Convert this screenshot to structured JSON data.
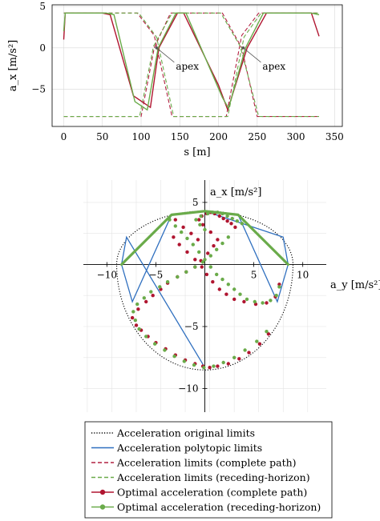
{
  "chart_data": [
    {
      "type": "line",
      "xlabel": "s [m]",
      "ylabel": "a_x [m/s²]",
      "xlim": [
        -15,
        360
      ],
      "ylim": [
        -9.5,
        5.2
      ],
      "xticks": [
        0,
        50,
        100,
        150,
        200,
        250,
        300,
        350
      ],
      "yticks": [
        5,
        0,
        -5
      ],
      "grid": true,
      "annotations": [
        {
          "text": "apex",
          "x": 120,
          "y": 0
        },
        {
          "text": "apex",
          "x": 232,
          "y": 0
        }
      ],
      "series": [
        {
          "name": "Acceleration limits (complete path)",
          "style": "dashed",
          "color": "#b22040",
          "x": [
            0,
            95,
            117,
            140,
            190,
            210,
            230,
            252,
            330
          ],
          "y": [
            4.2,
            4.2,
            1.5,
            -8.3,
            -8.3,
            -8.3,
            1.5,
            4.2,
            4.2
          ]
        },
        {
          "name": "Acceleration limits (complete path)",
          "style": "dashed",
          "color": "#b22040",
          "x": [
            0,
            80,
            100,
            117,
            138,
            190,
            205,
            230,
            250,
            330
          ],
          "y": [
            -8.3,
            -8.3,
            -8.3,
            0,
            4.2,
            4.2,
            4.2,
            0,
            -8.3,
            -8.3
          ]
        },
        {
          "name": "Acceleration limits (receding-horizon)",
          "style": "dashed",
          "color": "#6aab4a",
          "x": [
            0,
            97,
            120,
            142,
            192,
            212,
            233,
            255,
            330
          ],
          "y": [
            4.2,
            4.2,
            1.3,
            -8.3,
            -8.3,
            -8.3,
            1.3,
            4.2,
            4.2
          ]
        },
        {
          "name": "Acceleration limits (receding-horizon)",
          "style": "dashed",
          "color": "#6aab4a",
          "x": [
            0,
            78,
            98,
            116,
            140,
            188,
            203,
            228,
            252,
            330
          ],
          "y": [
            -8.3,
            -8.3,
            -8.3,
            0.2,
            4.2,
            4.2,
            4.2,
            0.2,
            -8.3,
            -8.3
          ]
        },
        {
          "name": "Optimal acceleration (complete path)",
          "style": "solid",
          "color": "#b01530",
          "x": [
            0,
            2,
            40,
            50,
            60,
            90,
            112,
            123,
            147,
            155,
            200,
            212,
            237,
            262,
            270,
            320,
            330
          ],
          "y": [
            1.0,
            4.2,
            4.2,
            4.2,
            4.0,
            -5.8,
            -7.2,
            0,
            4.2,
            4.2,
            -4.5,
            -7.5,
            0,
            4.2,
            4.2,
            4.2,
            1.4
          ]
        },
        {
          "name": "Optimal acceleration (receding-horizon)",
          "style": "solid",
          "color": "#6aab4a",
          "x": [
            0,
            2,
            40,
            55,
            65,
            92,
            108,
            122,
            145,
            158,
            205,
            213,
            235,
            258,
            268,
            320,
            330
          ],
          "y": [
            2.0,
            4.2,
            4.2,
            4.2,
            4.0,
            -6.5,
            -7.5,
            0,
            4.2,
            4.2,
            -6.0,
            -7.3,
            0,
            4.2,
            4.2,
            4.2,
            4.0
          ]
        }
      ]
    },
    {
      "type": "scatter",
      "xlabel": "a_y [m/s²]",
      "ylabel": "a_x [m/s²]",
      "xlim": [
        -12.4,
        12.4
      ],
      "ylim": [
        -11.9,
        6.8
      ],
      "xticks": [
        -10,
        -5,
        5,
        10
      ],
      "yticks": [
        5,
        -5,
        -10
      ],
      "grid": true,
      "series": [
        {
          "name": "Acceleration original limits",
          "style": "dotted",
          "color": "#000000",
          "ellipse": {
            "ax": 9,
            "ay_pos": 4.3,
            "ay_neg": -8.5
          }
        },
        {
          "name": "Acceleration polytopic limits",
          "style": "solid",
          "color": "#2f6fbf",
          "x": [
            0,
            8.0,
            8.5,
            7.4,
            3.4,
            0,
            -3.4,
            -7.4,
            -8.5,
            -8.0,
            0
          ],
          "y": [
            4.3,
            2.2,
            0,
            -3.0,
            4.0,
            4.3,
            4.0,
            -3.0,
            0,
            2.2,
            -8.3
          ]
        },
        {
          "name": "Acceleration limits (complete path)",
          "style": "dashed",
          "color": "#b22040",
          "x": [
            0,
            3.4,
            8.5,
            8.5,
            3.4,
            0,
            -3.4,
            -8.5,
            -8.5,
            -3.4,
            0
          ],
          "y": [
            4.3,
            4.0,
            0,
            0,
            4.0,
            4.3,
            4.0,
            0,
            0,
            4.0,
            4.3
          ]
        },
        {
          "name": "Acceleration limits (receding-horizon)",
          "style": "dashed",
          "color": "#6aab4a",
          "x": [
            0,
            3.4,
            8.5,
            8.5,
            3.4,
            0,
            -3.4,
            -8.5,
            -8.5,
            -3.4,
            0
          ],
          "y": [
            4.3,
            4.0,
            0,
            0,
            4.0,
            4.3,
            4.0,
            0,
            0,
            4.0,
            4.3
          ]
        },
        {
          "name": "Optimal acceleration (complete path)",
          "style": "markers",
          "color": "#b01530",
          "x": [
            -3.2,
            -2.6,
            -1.8,
            -1.0,
            -0.3,
            0.2,
            0.8,
            1.5,
            2.2,
            3.0,
            4.0,
            5.2,
            6.3,
            7.2,
            7.6,
            6.5,
            5.6,
            4.5,
            3.5,
            2.4,
            1.3,
            0.5,
            -0.2,
            -1.0,
            -2.0,
            -3.0,
            -4.0,
            -5.0,
            -5.8,
            -6.5,
            -7.0,
            -7.4,
            -6.8,
            -6.0,
            -5.3,
            -4.5,
            -3.8,
            -2.8,
            -1.9,
            -1.0,
            -0.4,
            0.3,
            0.9,
            1.3,
            0.6,
            -0.2,
            -0.6,
            -0.3,
            0.2,
            0.6,
            1.0,
            1.5,
            1.9,
            2.3,
            2.7,
            3.1,
            -3.0,
            -2.2,
            -1.4,
            -0.7
          ],
          "y": [
            2.2,
            1.6,
            1.0,
            0.4,
            -0.2,
            -0.8,
            -1.4,
            -2.0,
            -2.4,
            -2.8,
            -3.0,
            -3.2,
            -3.1,
            -2.6,
            -1.6,
            -5.6,
            -6.4,
            -7.1,
            -7.6,
            -8.0,
            -8.2,
            -8.3,
            -8.2,
            -8.0,
            -7.7,
            -7.3,
            -6.8,
            -6.3,
            -5.8,
            -5.3,
            -4.9,
            -4.3,
            -3.6,
            -3.0,
            -2.5,
            -2.0,
            -1.5,
            -1.0,
            -0.6,
            -0.2,
            0.3,
            0.9,
            1.5,
            2.0,
            2.6,
            3.2,
            3.6,
            3.9,
            4.1,
            4.2,
            4.1,
            3.9,
            3.7,
            3.5,
            3.3,
            3.0,
            3.6,
            3.0,
            2.5,
            2.0
          ]
        },
        {
          "name": "Optimal acceleration (receding-horizon)",
          "style": "markers",
          "color": "#6aab4a",
          "x": [
            -3.6,
            -3.0,
            -2.4,
            -1.8,
            -1.2,
            -0.6,
            0.0,
            0.6,
            1.2,
            1.8,
            2.4,
            3.0,
            3.6,
            4.3,
            5.1,
            5.9,
            6.7,
            7.3,
            7.6,
            6.3,
            5.3,
            4.1,
            3.0,
            1.9,
            0.9,
            -0.1,
            -1.1,
            -2.1,
            -3.1,
            -4.1,
            -5.1,
            -6.0,
            -6.7,
            -7.1,
            -7.3,
            -6.9,
            -6.2,
            -5.5,
            -4.6,
            -3.8,
            -2.8,
            -1.9,
            -1.0,
            -0.2,
            0.6,
            1.2,
            1.8,
            2.4,
            0.0,
            -0.5,
            -0.9,
            -0.4,
            0.3,
            0.8,
            1.3,
            1.8,
            2.3,
            2.8,
            3.3,
            3.8
          ],
          "y": [
            3.6,
            3.1,
            2.6,
            2.1,
            1.6,
            1.0,
            0.4,
            -0.2,
            -0.8,
            -1.2,
            -1.6,
            -2.0,
            -2.4,
            -2.8,
            -3.0,
            -3.1,
            -2.9,
            -2.5,
            -1.8,
            -5.4,
            -6.2,
            -6.9,
            -7.5,
            -7.9,
            -8.2,
            -8.3,
            -8.1,
            -7.8,
            -7.4,
            -6.9,
            -6.4,
            -5.8,
            -5.2,
            -4.5,
            -3.8,
            -3.2,
            -2.7,
            -2.2,
            -1.8,
            -1.4,
            -1.0,
            -0.6,
            -0.2,
            0.2,
            0.7,
            1.2,
            1.7,
            2.2,
            2.8,
            3.2,
            3.6,
            3.9,
            4.1,
            4.2,
            4.2,
            4.1,
            3.9,
            3.7,
            3.5,
            3.3
          ]
        }
      ]
    }
  ],
  "legend": {
    "placement": "bottom",
    "entries": [
      {
        "label": "Acceleration original limits",
        "style": "dotted",
        "color": "#000000"
      },
      {
        "label": "Acceleration polytopic limits",
        "style": "solid",
        "color": "#2f6fbf"
      },
      {
        "label": "Acceleration limits (complete path)",
        "style": "dashed",
        "color": "#b22040"
      },
      {
        "label": "Acceleration limits (receding-horizon)",
        "style": "dashed",
        "color": "#6aab4a"
      },
      {
        "label": "Optimal acceleration (complete path)",
        "style": "marker-line",
        "color": "#b01530"
      },
      {
        "label": "Optimal acceleration (receding-horizon)",
        "style": "marker-line",
        "color": "#6aab4a"
      }
    ]
  }
}
